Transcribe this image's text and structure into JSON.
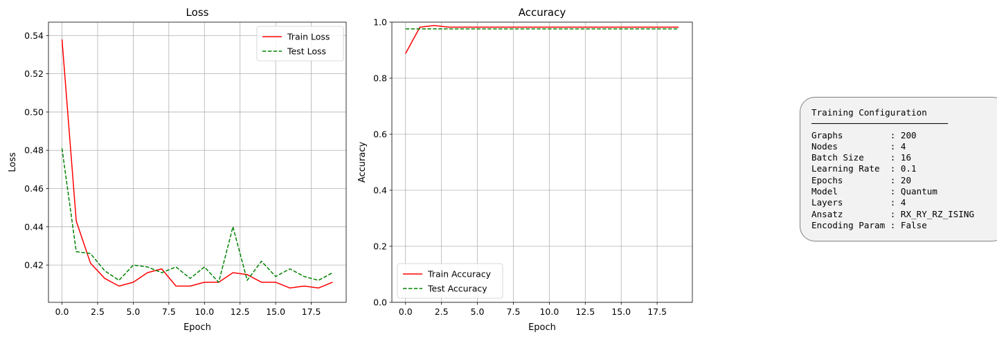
{
  "chart_data": [
    {
      "type": "line",
      "title": "Loss",
      "xlabel": "Epoch",
      "ylabel": "Loss",
      "xlim": [
        -0.95,
        19.95
      ],
      "ylim": [
        0.4005,
        0.547
      ],
      "grid": true,
      "legend_position": "top-right",
      "x_ticks": [
        0,
        2.5,
        5,
        7.5,
        10,
        12.5,
        15,
        17.5
      ],
      "x_tick_labels": [
        "0.0",
        "2.5",
        "5.0",
        "7.5",
        "10.0",
        "12.5",
        "15.0",
        "17.5"
      ],
      "y_ticks": [
        0.42,
        0.44,
        0.46,
        0.48,
        0.5,
        0.52,
        0.54
      ],
      "y_tick_labels": [
        "0.42",
        "0.44",
        "0.46",
        "0.48",
        "0.50",
        "0.52",
        "0.54"
      ],
      "x": [
        0,
        1,
        2,
        3,
        4,
        5,
        6,
        7,
        8,
        9,
        10,
        11,
        12,
        13,
        14,
        15,
        16,
        17,
        18,
        19
      ],
      "series": [
        {
          "name": "Train Loss",
          "color": "#ff0000",
          "style": "solid",
          "values": [
            0.538,
            0.443,
            0.421,
            0.413,
            0.409,
            0.411,
            0.416,
            0.418,
            0.409,
            0.409,
            0.411,
            0.411,
            0.416,
            0.415,
            0.411,
            0.411,
            0.408,
            0.409,
            0.408,
            0.411
          ]
        },
        {
          "name": "Test Loss",
          "color": "#008000",
          "style": "dashed",
          "values": [
            0.481,
            0.427,
            0.426,
            0.417,
            0.412,
            0.42,
            0.419,
            0.416,
            0.419,
            0.413,
            0.419,
            0.411,
            0.44,
            0.412,
            0.422,
            0.414,
            0.418,
            0.414,
            0.412,
            0.416
          ]
        }
      ]
    },
    {
      "type": "line",
      "title": "Accuracy",
      "xlabel": "Epoch",
      "ylabel": "Accuracy",
      "xlim": [
        -0.95,
        19.95
      ],
      "ylim": [
        0,
        1
      ],
      "grid": true,
      "legend_position": "bottom-left",
      "x_ticks": [
        0,
        2.5,
        5,
        7.5,
        10,
        12.5,
        15,
        17.5
      ],
      "x_tick_labels": [
        "0.0",
        "2.5",
        "5.0",
        "7.5",
        "10.0",
        "12.5",
        "15.0",
        "17.5"
      ],
      "y_ticks": [
        0,
        0.2,
        0.4,
        0.6,
        0.8,
        1.0
      ],
      "y_tick_labels": [
        "0.0",
        "0.2",
        "0.4",
        "0.6",
        "0.8",
        "1.0"
      ],
      "x": [
        0,
        1,
        2,
        3,
        4,
        5,
        6,
        7,
        8,
        9,
        10,
        11,
        12,
        13,
        14,
        15,
        16,
        17,
        18,
        19
      ],
      "series": [
        {
          "name": "Train Accuracy",
          "color": "#ff0000",
          "style": "solid",
          "values": [
            0.888,
            0.982,
            0.988,
            0.982,
            0.982,
            0.982,
            0.982,
            0.982,
            0.982,
            0.982,
            0.982,
            0.982,
            0.982,
            0.982,
            0.982,
            0.982,
            0.982,
            0.982,
            0.982,
            0.982
          ]
        },
        {
          "name": "Test Accuracy",
          "color": "#008000",
          "style": "dashed",
          "values": [
            0.976,
            0.976,
            0.976,
            0.976,
            0.976,
            0.976,
            0.976,
            0.976,
            0.976,
            0.976,
            0.976,
            0.976,
            0.976,
            0.976,
            0.976,
            0.976,
            0.976,
            0.976,
            0.976,
            0.976
          ]
        }
      ]
    }
  ],
  "config_box": {
    "lines": [
      "Training Configuration",
      "──────────────────────────",
      "Graphs         : 200",
      "Nodes          : 4",
      "Batch Size     : 16",
      "Learning Rate  : 0.1",
      "Epochs         : 20",
      "Model          : Quantum",
      "Layers         : 4",
      "Ansatz         : RX_RY_RZ_ISING",
      "Encoding Param : False"
    ]
  },
  "colors": {
    "grid": "#b0b0b0",
    "axes": "#000000",
    "legend_border": "#cccccc"
  }
}
